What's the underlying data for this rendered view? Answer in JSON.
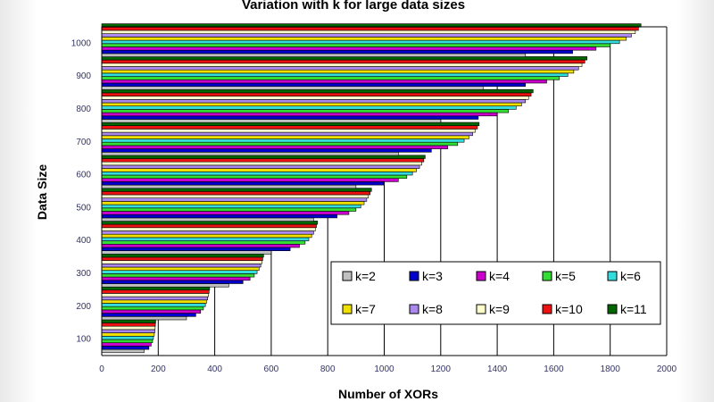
{
  "chart_data": {
    "type": "bar",
    "orientation": "horizontal",
    "title": "Variation with k for large data sizes",
    "xlabel": "Number of XORs",
    "ylabel": "Data Size",
    "xlim": [
      0,
      2000
    ],
    "xticks": [
      0,
      200,
      400,
      600,
      800,
      1000,
      1200,
      1400,
      1600,
      1800,
      2000
    ],
    "grid": "vertical",
    "legend_position": "bottom-right",
    "categories": [
      100,
      200,
      300,
      400,
      500,
      600,
      700,
      800,
      900,
      1000
    ],
    "series": [
      {
        "name": "k=2",
        "color": "#c0c0c0",
        "values": [
          150,
          300,
          450,
          600,
          750,
          900,
          1050,
          1200,
          1350,
          1500
        ]
      },
      {
        "name": "k=3",
        "color": "#0000cc",
        "values": [
          167,
          333,
          500,
          667,
          833,
          1000,
          1167,
          1333,
          1500,
          1667
        ]
      },
      {
        "name": "k=4",
        "color": "#cc00cc",
        "values": [
          175,
          350,
          525,
          700,
          875,
          1050,
          1225,
          1400,
          1575,
          1750
        ]
      },
      {
        "name": "k=5",
        "color": "#33dd33",
        "values": [
          180,
          360,
          540,
          720,
          900,
          1080,
          1260,
          1440,
          1620,
          1800
        ]
      },
      {
        "name": "k=6",
        "color": "#33dddd",
        "values": [
          183,
          367,
          550,
          733,
          917,
          1100,
          1283,
          1467,
          1650,
          1833
        ]
      },
      {
        "name": "k=7",
        "color": "#f0e000",
        "values": [
          186,
          371,
          557,
          743,
          929,
          1114,
          1300,
          1486,
          1671,
          1857
        ]
      },
      {
        "name": "k=8",
        "color": "#aa88ee",
        "values": [
          188,
          375,
          563,
          750,
          938,
          1125,
          1313,
          1500,
          1688,
          1875
        ]
      },
      {
        "name": "k=9",
        "color": "#ffffcc",
        "values": [
          189,
          378,
          567,
          756,
          944,
          1133,
          1322,
          1511,
          1700,
          1889
        ]
      },
      {
        "name": "k=10",
        "color": "#ee1111",
        "values": [
          190,
          380,
          570,
          760,
          950,
          1140,
          1330,
          1520,
          1710,
          1900
        ]
      },
      {
        "name": "k=11",
        "color": "#006600",
        "values": [
          191,
          382,
          573,
          764,
          955,
          1145,
          1336,
          1527,
          1718,
          1909
        ]
      }
    ]
  }
}
